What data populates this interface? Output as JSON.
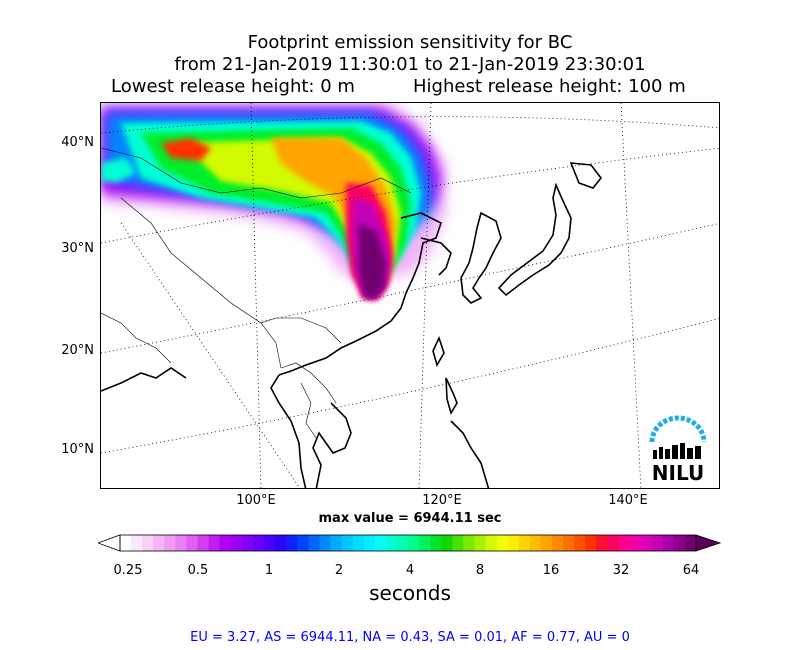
{
  "title": {
    "line1": "Footprint emission sensitivity for BC",
    "line2": "from 21-Jan-2019 11:30:01 to 21-Jan-2019 23:30:01",
    "lowest_release": "Lowest release height: 0 m",
    "highest_release": "Highest release height: 100 m"
  },
  "map": {
    "lat_labels": [
      "40°N",
      "30°N",
      "20°N",
      "10°N"
    ],
    "lon_labels": [
      "100°E",
      "120°E",
      "140°E"
    ],
    "max_value_text": "max value = 6944.11 sec",
    "logo_text": "NILU",
    "logo_color": "#1aaee6"
  },
  "colorbar": {
    "tick_labels": [
      "0.25",
      "0.5",
      "1",
      "2",
      "4",
      "8",
      "16",
      "32",
      "64"
    ],
    "units": "seconds",
    "colors": [
      "#ffffff",
      "#fce8fd",
      "#f8d0fb",
      "#f3b6f8",
      "#ee9cf6",
      "#e780f4",
      "#de5ff2",
      "#d23df0",
      "#c21cf0",
      "#b100f3",
      "#9d00f7",
      "#8500fb",
      "#6a00ff",
      "#4c00ff",
      "#2b05ff",
      "#1020ff",
      "#0044ff",
      "#0066ff",
      "#0088ff",
      "#00aaff",
      "#00c6ff",
      "#00dcff",
      "#00eeff",
      "#00fff0",
      "#00ffd4",
      "#00ffb0",
      "#00ff88",
      "#00f45a",
      "#00e52c",
      "#12d800",
      "#48e000",
      "#7aea00",
      "#a8f200",
      "#d2fa00",
      "#f4ff00",
      "#ffec00",
      "#ffd400",
      "#ffbc00",
      "#ffa400",
      "#ff8c00",
      "#ff7000",
      "#ff5200",
      "#ff3200",
      "#ff1030",
      "#ff0060",
      "#ff0090",
      "#f200a8",
      "#de00b8",
      "#c400b8",
      "#a800a8",
      "#8c008e",
      "#700070"
    ]
  },
  "region_stats": "EU = 3.27,  AS = 6944.11,  NA = 0.43,  SA = 0.01,  AF = 0.77,  AU = 0"
}
